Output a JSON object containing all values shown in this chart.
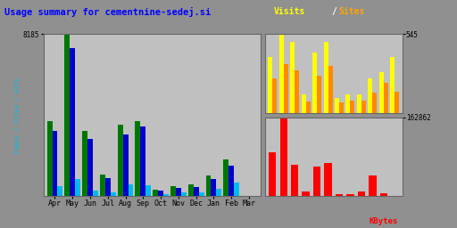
{
  "title": "Usage summary for cementnine-sedej.si",
  "title_color": "#0000ff",
  "plot_bg_color": "#c0c0c0",
  "outer_bg": "#909090",
  "months": [
    "Apr",
    "May",
    "Jun",
    "Jul",
    "Aug",
    "Sep",
    "Oct",
    "Nov",
    "Dec",
    "Jan",
    "Feb",
    "Mar"
  ],
  "left_panel": {
    "hits": [
      3800,
      8185,
      3300,
      1100,
      3600,
      3800,
      330,
      520,
      580,
      1050,
      1850,
      20
    ],
    "files": [
      3300,
      7500,
      2900,
      900,
      3100,
      3500,
      260,
      420,
      470,
      880,
      1550,
      15
    ],
    "pages": [
      520,
      850,
      260,
      180,
      580,
      530,
      75,
      170,
      170,
      380,
      680,
      10
    ],
    "ylim": [
      0,
      8185
    ],
    "ytick_label": "8185",
    "ylabel": "Pages / Files / Hits",
    "colors": {
      "hits": "#007700",
      "files": "#0000cc",
      "pages": "#00bbee"
    }
  },
  "top_right_panel": {
    "visits": [
      390,
      545,
      490,
      130,
      420,
      490,
      105,
      130,
      125,
      240,
      280,
      385
    ],
    "sites": [
      240,
      340,
      295,
      80,
      255,
      325,
      70,
      85,
      85,
      140,
      210,
      145
    ],
    "ylim": [
      0,
      545
    ],
    "ytick_label": "545",
    "colors": {
      "visits": "#ffff00",
      "sites": "#ff8800"
    },
    "legend_visits": "Visits",
    "legend_sites": "Sites"
  },
  "bottom_right_panel": {
    "kbytes": [
      90000,
      162862,
      65000,
      10000,
      62000,
      68000,
      4500,
      4500,
      10000,
      42000,
      5000,
      800
    ],
    "ylim": [
      0,
      162862
    ],
    "ytick_label": "162862",
    "ylabel": "KBytes",
    "color": "#ff0000"
  }
}
